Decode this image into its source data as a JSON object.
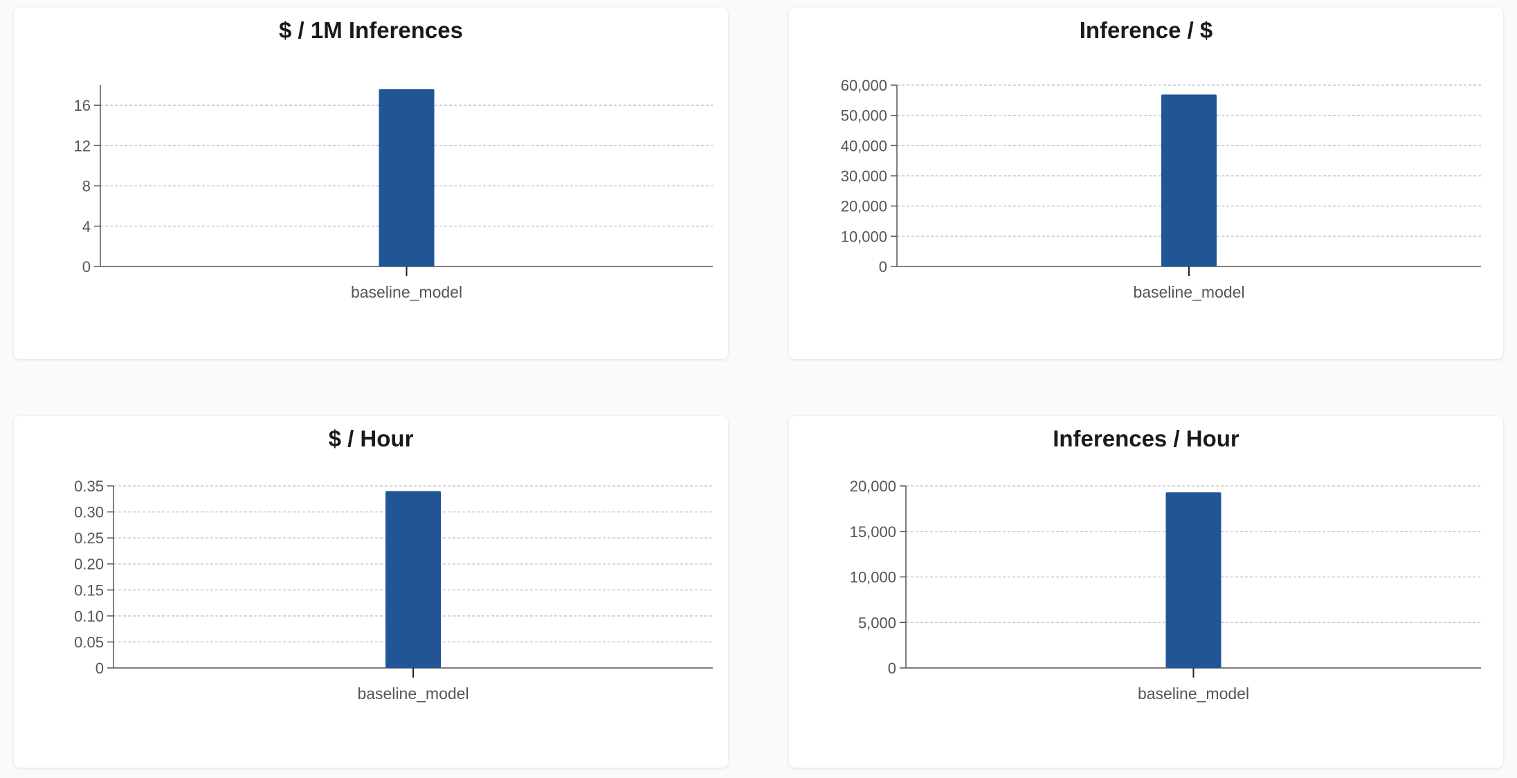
{
  "colors": {
    "bar": "#225595",
    "grid": "#c8c8c8",
    "axis": "#555555"
  },
  "chart_data": [
    {
      "type": "bar",
      "title": "$ / 1M Inferences",
      "categories": [
        "baseline_model"
      ],
      "values": [
        17.6
      ],
      "yticks": [
        "0",
        "4",
        "8",
        "12",
        "16"
      ],
      "ytick_values": [
        0,
        4,
        8,
        12,
        16
      ],
      "ylim": [
        0,
        18
      ],
      "grid": true
    },
    {
      "type": "bar",
      "title": "Inference / $",
      "categories": [
        "baseline_model"
      ],
      "values": [
        56900
      ],
      "yticks": [
        "0",
        "10,000",
        "20,000",
        "30,000",
        "40,000",
        "50,000",
        "60,000"
      ],
      "ytick_values": [
        0,
        10000,
        20000,
        30000,
        40000,
        50000,
        60000
      ],
      "ylim": [
        0,
        60000
      ],
      "grid": true
    },
    {
      "type": "bar",
      "title": "$ / Hour",
      "categories": [
        "baseline_model"
      ],
      "values": [
        0.34
      ],
      "yticks": [
        "0",
        "0.05",
        "0.10",
        "0.15",
        "0.20",
        "0.25",
        "0.30",
        "0.35"
      ],
      "ytick_values": [
        0,
        0.05,
        0.1,
        0.15,
        0.2,
        0.25,
        0.3,
        0.35
      ],
      "ylim": [
        0,
        0.35
      ],
      "grid": true
    },
    {
      "type": "bar",
      "title": "Inferences / Hour",
      "categories": [
        "baseline_model"
      ],
      "values": [
        19300
      ],
      "yticks": [
        "0",
        "5,000",
        "10,000",
        "15,000",
        "20,000"
      ],
      "ytick_values": [
        0,
        5000,
        10000,
        15000,
        20000
      ],
      "ylim": [
        0,
        20000
      ],
      "grid": true
    }
  ]
}
